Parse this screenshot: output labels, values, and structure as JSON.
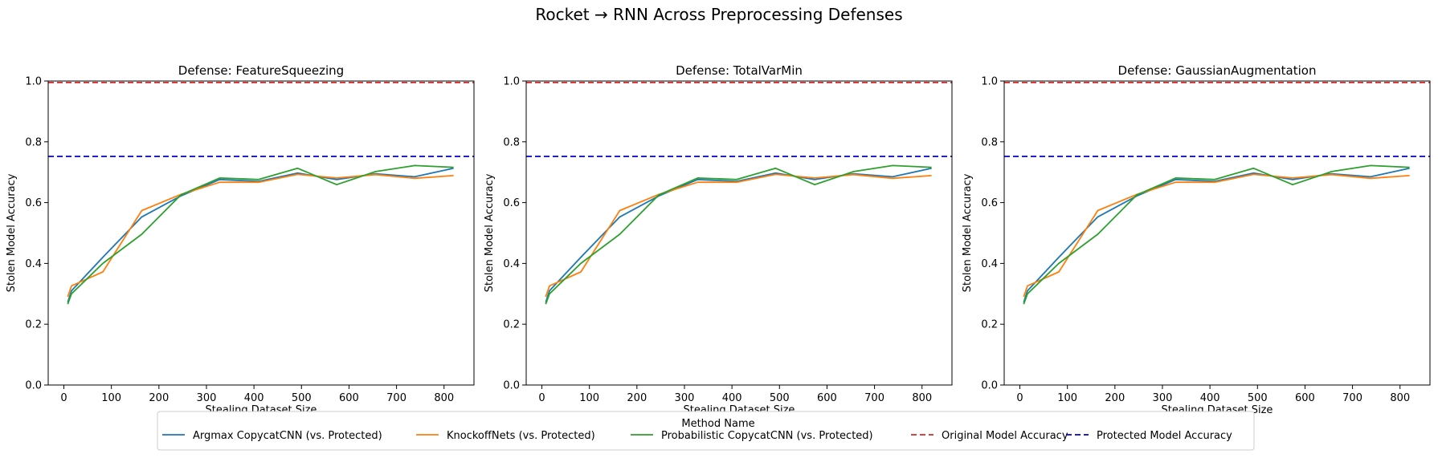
{
  "figure": {
    "suptitle": "Rocket → RNN Across Preprocessing Defenses"
  },
  "legend": {
    "title": "Method Name",
    "placement": "bottom-center"
  },
  "chart_data": [
    {
      "type": "line",
      "title": "Defense: FeatureSqueezing",
      "xlabel": "Stealing Dataset Size",
      "ylabel": "Stolen Model Accuracy",
      "xlim": [
        -33,
        863
      ],
      "ylim": [
        0,
        1
      ],
      "xticks": [
        0,
        100,
        200,
        300,
        400,
        500,
        600,
        700,
        800
      ],
      "yticks": [
        "0.0",
        "0.2",
        "0.4",
        "0.6",
        "0.8",
        "1.0"
      ],
      "grid": false,
      "x": [
        8,
        16,
        82,
        164,
        246,
        328,
        410,
        492,
        574,
        656,
        738,
        820
      ],
      "series": [
        {
          "name": "Argmax CopycatCNN (vs. Protected)",
          "color": "#1f77b4",
          "values": [
            0.272,
            0.31,
            0.42,
            0.553,
            0.622,
            0.676,
            0.67,
            0.697,
            0.676,
            0.695,
            0.685,
            0.713
          ]
        },
        {
          "name": "KnockoffNets (vs. Protected)",
          "color": "#ff7f0e",
          "values": [
            0.29,
            0.326,
            0.372,
            0.574,
            0.627,
            0.667,
            0.667,
            0.693,
            0.681,
            0.692,
            0.68,
            0.689
          ]
        },
        {
          "name": "Probabilistic CopycatCNN (vs. Protected)",
          "color": "#2ca02c",
          "values": [
            0.266,
            0.3,
            0.4,
            0.496,
            0.625,
            0.681,
            0.676,
            0.713,
            0.659,
            0.702,
            0.722,
            0.716
          ]
        }
      ],
      "hlines": [
        {
          "name": "Original Model Accuracy",
          "color": "#d62728",
          "value": 0.995
        },
        {
          "name": "Protected Model Accuracy",
          "color": "#0000cc",
          "value": 0.752
        }
      ]
    },
    {
      "type": "line",
      "title": "Defense: TotalVarMin",
      "xlabel": "Stealing Dataset Size",
      "ylabel": "Stolen Model Accuracy",
      "xlim": [
        -33,
        863
      ],
      "ylim": [
        0,
        1
      ],
      "xticks": [
        0,
        100,
        200,
        300,
        400,
        500,
        600,
        700,
        800
      ],
      "yticks": [
        "0.0",
        "0.2",
        "0.4",
        "0.6",
        "0.8",
        "1.0"
      ],
      "grid": false,
      "x": [
        8,
        16,
        82,
        164,
        246,
        328,
        410,
        492,
        574,
        656,
        738,
        820
      ],
      "series": [
        {
          "name": "Argmax CopycatCNN (vs. Protected)",
          "color": "#1f77b4",
          "values": [
            0.272,
            0.31,
            0.42,
            0.553,
            0.622,
            0.676,
            0.67,
            0.697,
            0.676,
            0.695,
            0.685,
            0.713
          ]
        },
        {
          "name": "KnockoffNets (vs. Protected)",
          "color": "#ff7f0e",
          "values": [
            0.29,
            0.326,
            0.372,
            0.574,
            0.627,
            0.667,
            0.667,
            0.693,
            0.681,
            0.692,
            0.68,
            0.689
          ]
        },
        {
          "name": "Probabilistic CopycatCNN (vs. Protected)",
          "color": "#2ca02c",
          "values": [
            0.266,
            0.3,
            0.4,
            0.496,
            0.625,
            0.681,
            0.676,
            0.713,
            0.659,
            0.702,
            0.722,
            0.716
          ]
        }
      ],
      "hlines": [
        {
          "name": "Original Model Accuracy",
          "color": "#d62728",
          "value": 0.995
        },
        {
          "name": "Protected Model Accuracy",
          "color": "#0000cc",
          "value": 0.752
        }
      ]
    },
    {
      "type": "line",
      "title": "Defense: GaussianAugmentation",
      "xlabel": "Stealing Dataset Size",
      "ylabel": "Stolen Model Accuracy",
      "xlim": [
        -33,
        863
      ],
      "ylim": [
        0,
        1
      ],
      "xticks": [
        0,
        100,
        200,
        300,
        400,
        500,
        600,
        700,
        800
      ],
      "yticks": [
        "0.0",
        "0.2",
        "0.4",
        "0.6",
        "0.8",
        "1.0"
      ],
      "grid": false,
      "x": [
        8,
        16,
        82,
        164,
        246,
        328,
        410,
        492,
        574,
        656,
        738,
        820
      ],
      "series": [
        {
          "name": "Argmax CopycatCNN (vs. Protected)",
          "color": "#1f77b4",
          "values": [
            0.272,
            0.31,
            0.42,
            0.553,
            0.622,
            0.676,
            0.67,
            0.697,
            0.676,
            0.695,
            0.685,
            0.713
          ]
        },
        {
          "name": "KnockoffNets (vs. Protected)",
          "color": "#ff7f0e",
          "values": [
            0.29,
            0.326,
            0.372,
            0.574,
            0.627,
            0.667,
            0.667,
            0.693,
            0.681,
            0.692,
            0.68,
            0.689
          ]
        },
        {
          "name": "Probabilistic CopycatCNN (vs. Protected)",
          "color": "#2ca02c",
          "values": [
            0.266,
            0.3,
            0.4,
            0.496,
            0.625,
            0.681,
            0.676,
            0.713,
            0.659,
            0.702,
            0.722,
            0.716
          ]
        }
      ],
      "hlines": [
        {
          "name": "Original Model Accuracy",
          "color": "#d62728",
          "value": 0.995
        },
        {
          "name": "Protected Model Accuracy",
          "color": "#0000cc",
          "value": 0.752
        }
      ]
    }
  ]
}
